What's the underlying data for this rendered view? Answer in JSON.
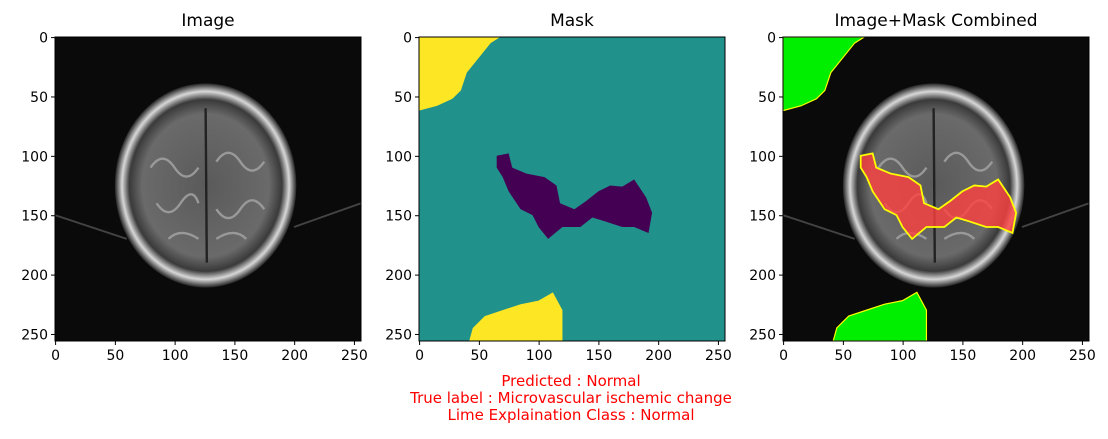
{
  "chart_data": [
    {
      "type": "image",
      "title": "Image",
      "xlim": [
        -0.5,
        255.5
      ],
      "ylim": [
        255.5,
        -0.5
      ],
      "xticks": [
        0,
        50,
        100,
        150,
        200,
        250
      ],
      "yticks": [
        0,
        50,
        100,
        150,
        200,
        250
      ]
    },
    {
      "type": "image",
      "title": "Mask",
      "xlim": [
        -0.5,
        255.5
      ],
      "ylim": [
        255.5,
        -0.5
      ],
      "xticks": [
        0,
        50,
        100,
        150,
        200,
        250
      ],
      "yticks": [
        0,
        50,
        100,
        150,
        200,
        250
      ]
    },
    {
      "type": "image",
      "title": "Image+Mask Combined",
      "xlim": [
        -0.5,
        255.5
      ],
      "ylim": [
        255.5,
        -0.5
      ],
      "xticks": [
        0,
        50,
        100,
        150,
        200,
        250
      ],
      "yticks": [
        0,
        50,
        100,
        150,
        200,
        250
      ]
    }
  ],
  "caption": [
    "Predicted : Normal",
    "True label : Microvascular ischemic change",
    "Lime Explaination Class : Normal"
  ]
}
